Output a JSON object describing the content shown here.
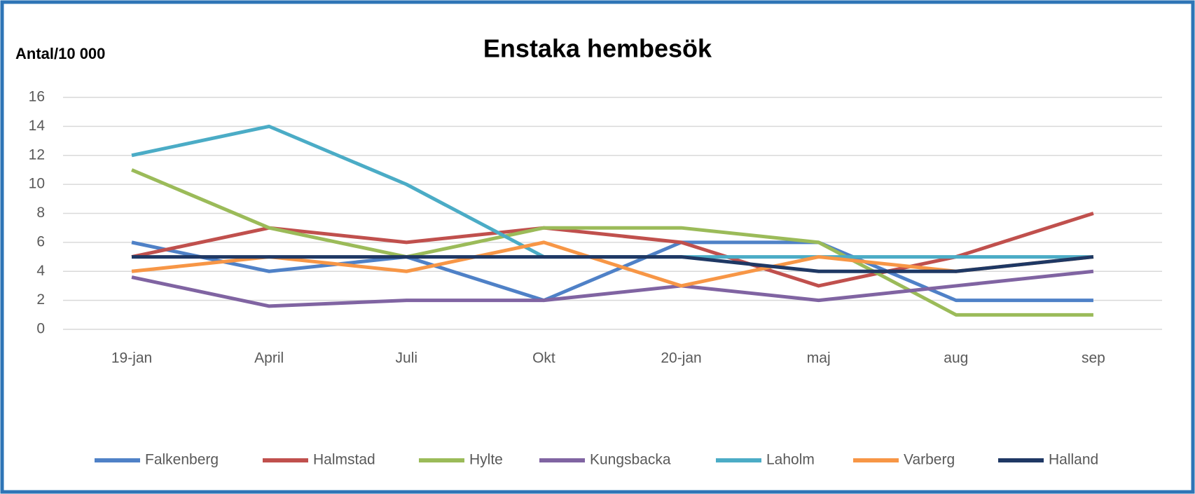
{
  "chart_data": {
    "type": "line",
    "title": "Enstaka hembesök",
    "y_label": "Antal/10 000",
    "categories": [
      "19-jan",
      "April",
      "Juli",
      "Okt",
      "20-jan",
      "maj",
      "aug",
      "sep"
    ],
    "series": [
      {
        "name": "Falkenberg",
        "color": "#4f81c7",
        "values": [
          6,
          4,
          5,
          2,
          6,
          6,
          2,
          2
        ]
      },
      {
        "name": "Halmstad",
        "color": "#c0504d",
        "values": [
          5,
          7,
          6,
          7,
          6,
          3,
          5,
          8
        ]
      },
      {
        "name": "Hylte",
        "color": "#9bbb59",
        "values": [
          11,
          7,
          5,
          7,
          7,
          6,
          1,
          1
        ]
      },
      {
        "name": "Kungsbacka",
        "color": "#8064a2",
        "values": [
          3.6,
          1.6,
          2,
          2,
          3,
          2,
          3,
          4
        ]
      },
      {
        "name": "Laholm",
        "color": "#4bacc6",
        "values": [
          12,
          14,
          10,
          5,
          5,
          5,
          5,
          5
        ]
      },
      {
        "name": "Varberg",
        "color": "#f79646",
        "values": [
          4,
          5,
          4,
          6,
          3,
          5,
          4,
          5
        ]
      },
      {
        "name": "Halland",
        "color": "#1f3864",
        "values": [
          5,
          5,
          5,
          5,
          5,
          4,
          4,
          5
        ]
      }
    ],
    "ylim": [
      0,
      16
    ],
    "yticks": [
      0,
      2,
      4,
      6,
      8,
      10,
      12,
      14,
      16
    ],
    "grid": true,
    "legend": "bottom"
  }
}
